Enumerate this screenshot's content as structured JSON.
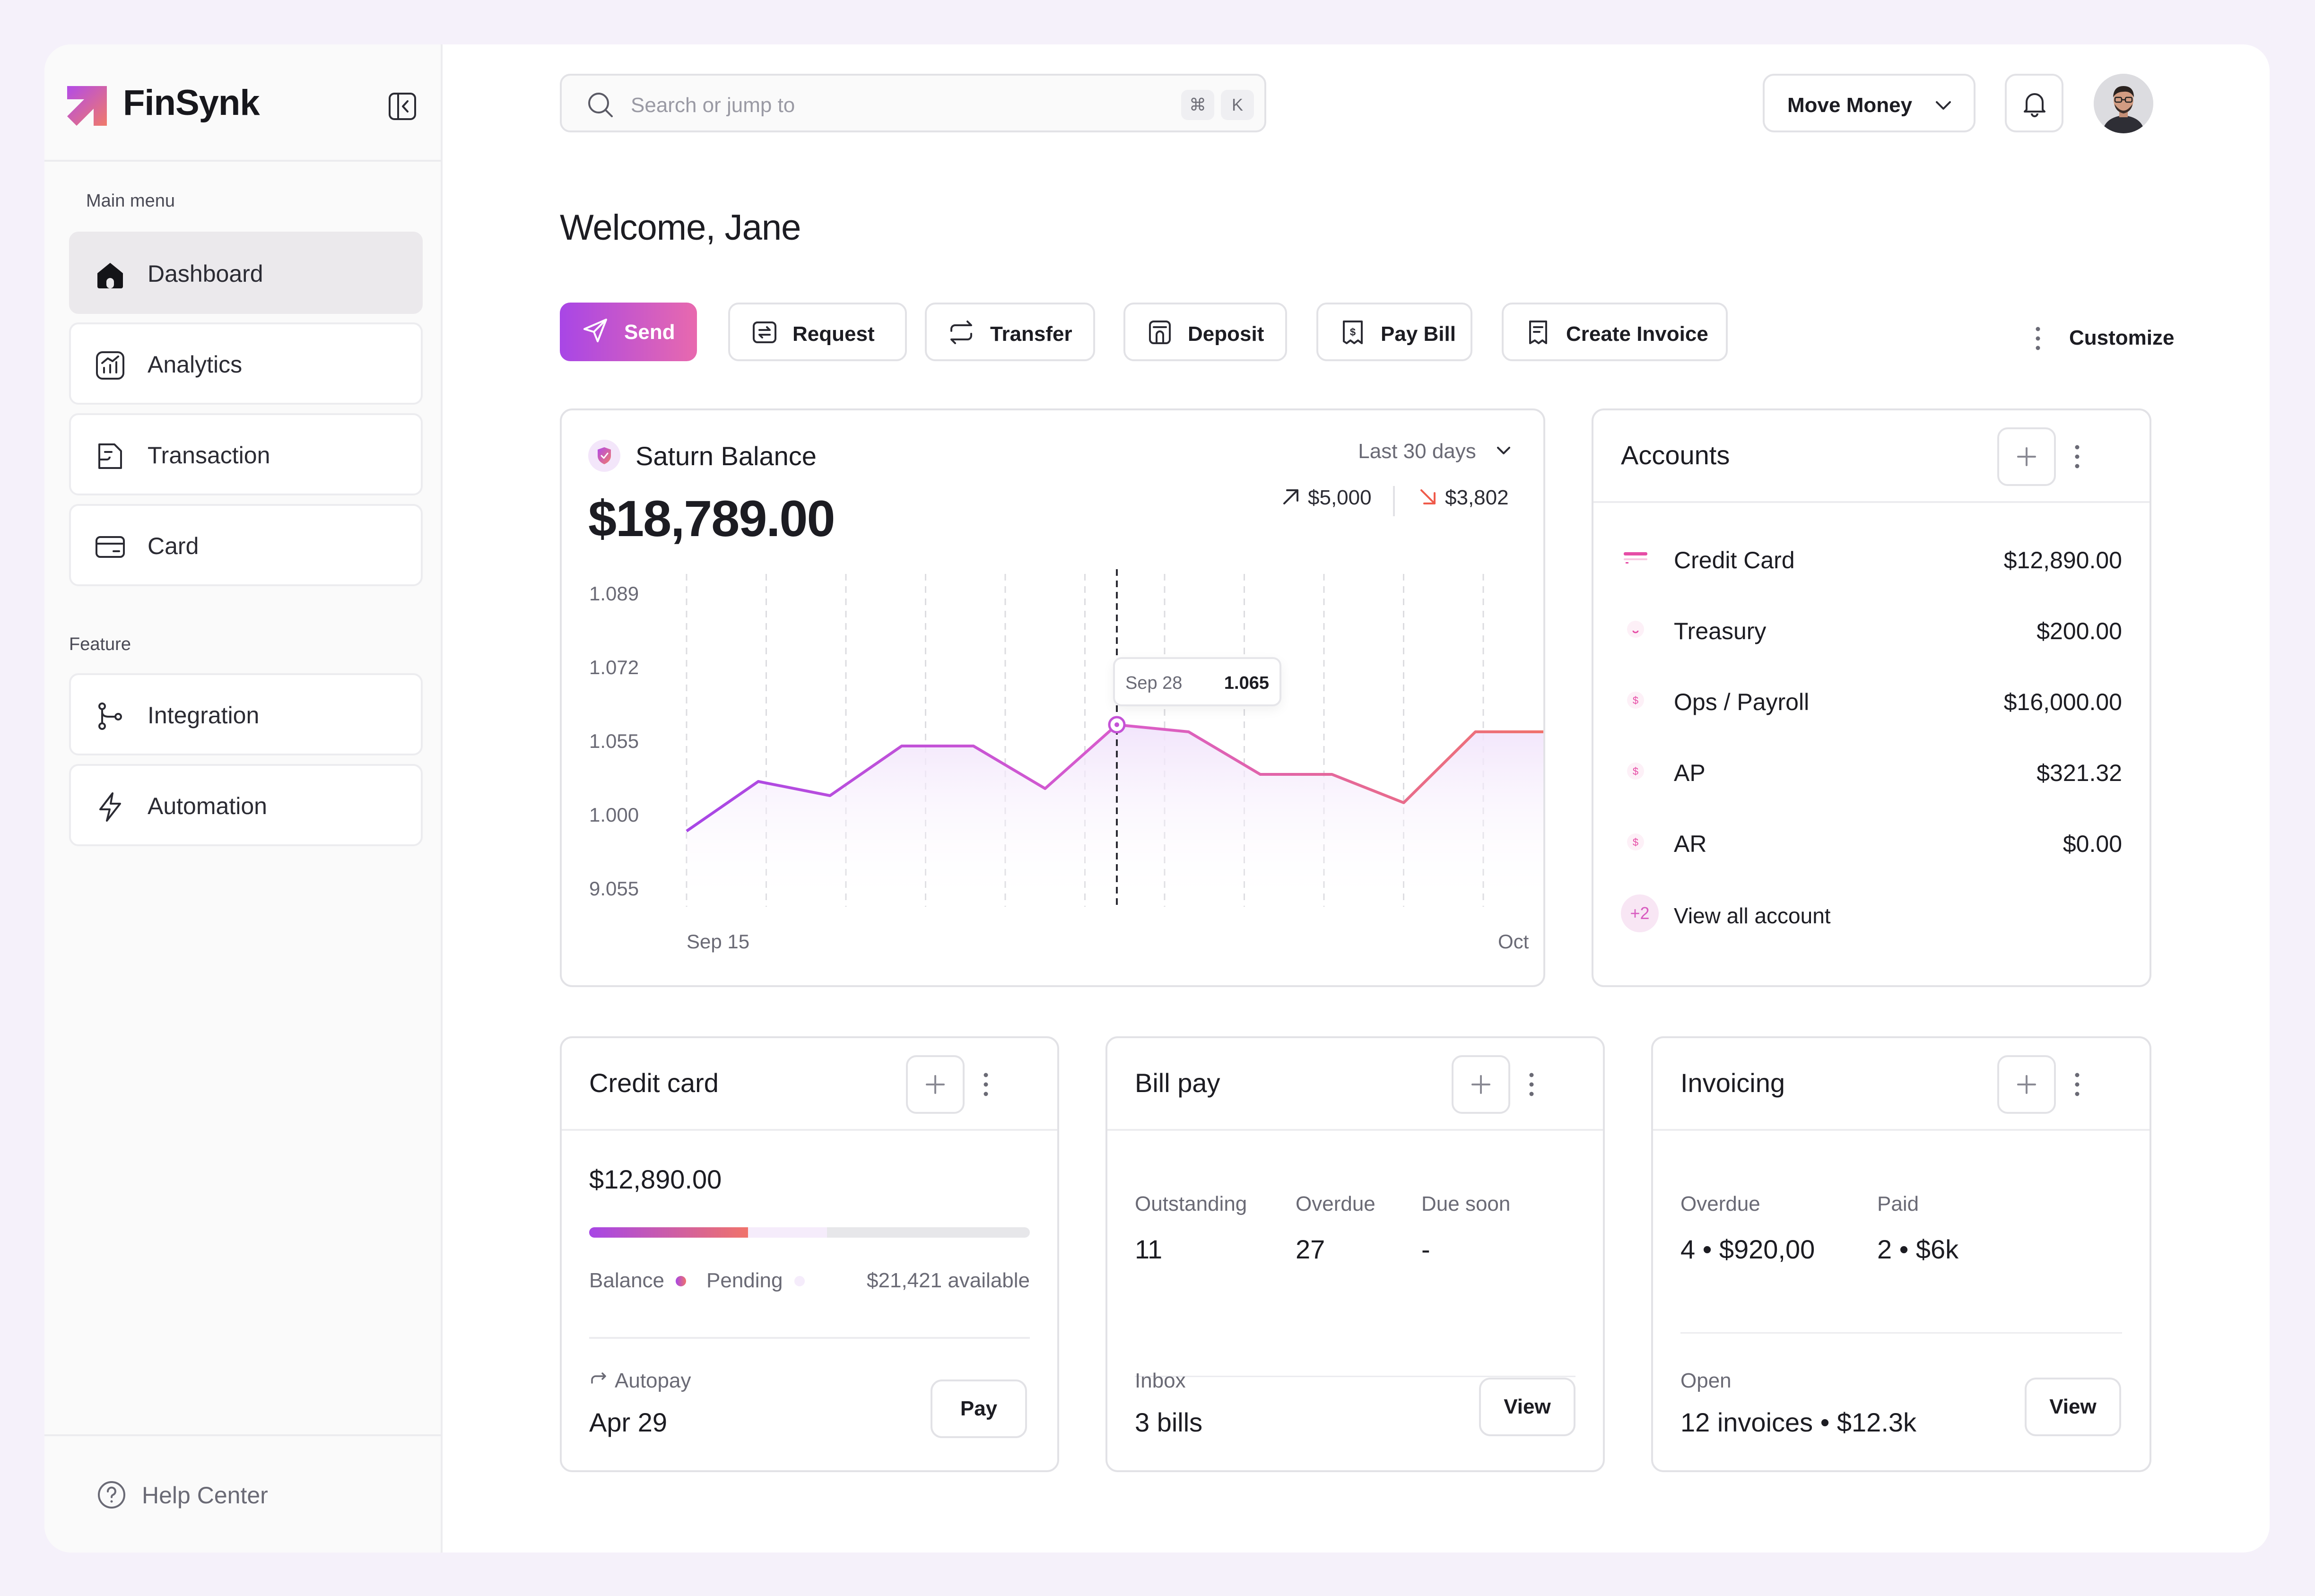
{
  "brand": {
    "name": "FinSynk"
  },
  "sidebar": {
    "main_menu_label": "Main menu",
    "feature_label": "Feature",
    "items": [
      {
        "label": "Dashboard",
        "icon": "home-icon",
        "active": true
      },
      {
        "label": "Analytics",
        "icon": "analytics-icon"
      },
      {
        "label": "Transaction",
        "icon": "transaction-icon"
      },
      {
        "label": "Card",
        "icon": "card-icon"
      }
    ],
    "feature_items": [
      {
        "label": "Integration",
        "icon": "integration-icon"
      },
      {
        "label": "Automation",
        "icon": "lightning-icon"
      }
    ],
    "help_label": "Help Center"
  },
  "header": {
    "search_placeholder": "Search or jump to",
    "shortcut_keys": [
      "⌘",
      "K"
    ],
    "move_money_label": "Move Money"
  },
  "welcome": "Welcome, Jane",
  "quick_actions": [
    {
      "label": "Send",
      "primary": true
    },
    {
      "label": "Request"
    },
    {
      "label": "Transfer"
    },
    {
      "label": "Deposit"
    },
    {
      "label": "Pay Bill"
    },
    {
      "label": "Create Invoice"
    }
  ],
  "customize_label": "Customize",
  "balance_card": {
    "title": "Saturn Balance",
    "range": "Last 30 days",
    "amount": "$18,789.00",
    "inflow": "$5,000",
    "outflow": "$3,802",
    "tooltip": {
      "date": "Sep 28",
      "value": "1.065"
    }
  },
  "chart_data": {
    "type": "line",
    "y_ticks": [
      "1.089",
      "1.072",
      "1.055",
      "1.000",
      "9.055"
    ],
    "x_ticks": [
      "Sep 15",
      "Oct"
    ],
    "values": [
      1.05,
      1.057,
      1.055,
      1.062,
      1.062,
      1.056,
      1.065,
      1.064,
      1.058,
      1.058,
      1.054,
      1.064,
      1.064
    ],
    "highlight_index": 6,
    "colors": {
      "start": "#a746e6",
      "end": "#f0736b",
      "fill": "#f3e9fb"
    }
  },
  "accounts": {
    "title": "Accounts",
    "items": [
      {
        "name": "Credit Card",
        "amount": "$12,890.00",
        "icon": "credit-card-icon"
      },
      {
        "name": "Treasury",
        "amount": "$200.00",
        "icon": "treasury-icon"
      },
      {
        "name": "Ops / Payroll",
        "amount": "$16,000.00",
        "icon": "dollar-icon"
      },
      {
        "name": "AP",
        "amount": "$321.32",
        "icon": "dollar-icon"
      },
      {
        "name": "AR",
        "amount": "$0.00",
        "icon": "dollar-icon"
      }
    ],
    "more_badge": "+2",
    "view_all": "View all account"
  },
  "credit_card": {
    "title": "Credit card",
    "amount": "$12,890.00",
    "balance_label": "Balance",
    "pending_label": "Pending",
    "available": "$21,421 available",
    "balance_fraction": 0.36,
    "pending_fraction": 0.18,
    "autopay_label": "Autopay",
    "autopay_date": "Apr 29",
    "pay_label": "Pay"
  },
  "bill_pay": {
    "title": "Bill pay",
    "stats": [
      {
        "label": "Outstanding",
        "value": "11"
      },
      {
        "label": "Overdue",
        "value": "27"
      },
      {
        "label": "Due soon",
        "value": "-"
      }
    ],
    "inbox_label": "Inbox",
    "inbox_value": "3 bills",
    "view_label": "View"
  },
  "invoicing": {
    "title": "Invoicing",
    "overdue_label": "Overdue",
    "overdue_value": "4 • $920,00",
    "paid_label": "Paid",
    "paid_value": "2 • $6k",
    "open_label": "Open",
    "open_value": "12 invoices • $12.3k",
    "view_label": "View"
  }
}
